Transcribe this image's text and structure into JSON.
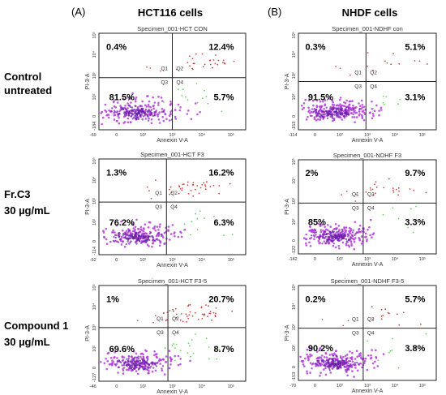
{
  "panel_labels": [
    "(A)",
    "(B)"
  ],
  "column_titles": [
    "HCT116 cells",
    "NHDF cells"
  ],
  "row_labels": [
    [
      "Control",
      "untreated"
    ],
    [
      "Fr.C3",
      "30 µg/mL"
    ],
    [
      "Compound 1",
      "30 µg/mL"
    ]
  ],
  "colors": {
    "q1_dots": "#d9302a",
    "q2_dots": "#c8261e",
    "q4_dots": "#44d23c",
    "q3_dots": "#b53cdc",
    "dense": "#6a1fa8",
    "frame": "#222222"
  },
  "chart_data": [
    {
      "type": "scatter",
      "title": "Specimen_001-HCT CON",
      "xlabel": "Annexin V-A",
      "ylabel": "PI-3-A",
      "x_ticks": [
        "-69",
        "0",
        "10²",
        "10³",
        "10⁴",
        "10⁵"
      ],
      "y_ticks": [
        "-184",
        "0",
        "10²",
        "10³",
        "10⁴",
        "10⁵"
      ],
      "x_scale": "log",
      "y_scale": "log",
      "quadrant_labels": [
        "Q1",
        "Q2",
        "Q3",
        "Q4"
      ],
      "quadrants": {
        "upper_left": 0.4,
        "upper_right": 12.4,
        "lower_left": 81.5,
        "lower_right": 5.7
      },
      "quadrant_text": {
        "upper_left": "0.4%",
        "upper_right": "12.4%",
        "lower_left": "81.5%",
        "lower_right": "5.7%"
      }
    },
    {
      "type": "scatter",
      "title": "Specimen_001-NDHF con",
      "xlabel": "Annexin V-A",
      "ylabel": "PI-3-A",
      "x_ticks": [
        "-114",
        "0",
        "10²",
        "10³",
        "10⁴",
        "10⁵"
      ],
      "y_ticks": [
        "-153",
        "0",
        "10²",
        "10³",
        "10⁴",
        "10⁵"
      ],
      "x_scale": "log",
      "y_scale": "log",
      "quadrant_labels": [
        "Q1",
        "Q2",
        "Q3",
        "Q4"
      ],
      "quadrants": {
        "upper_left": 0.3,
        "upper_right": 5.1,
        "lower_left": 91.5,
        "lower_right": 3.1
      },
      "quadrant_text": {
        "upper_left": "0.3%",
        "upper_right": "5.1%",
        "lower_left": "91.5%",
        "lower_right": "3.1%"
      }
    },
    {
      "type": "scatter",
      "title": "Specimen_001-HCT F3",
      "xlabel": "Annexin V-A",
      "ylabel": "PI-3-A",
      "x_ticks": [
        "-52",
        "0",
        "10²",
        "10³",
        "10⁴",
        "10⁵"
      ],
      "y_ticks": [
        "-114",
        "0",
        "10²",
        "10³",
        "10⁴",
        "10⁵"
      ],
      "x_scale": "log",
      "y_scale": "log",
      "quadrant_labels": [
        "Q1",
        "Q2",
        "Q3",
        "Q4"
      ],
      "quadrants": {
        "upper_left": 1.3,
        "upper_right": 16.2,
        "lower_left": 76.2,
        "lower_right": 6.3
      },
      "quadrant_text": {
        "upper_left": "1.3%",
        "upper_right": "16.2%",
        "lower_left": "76.2%",
        "lower_right": "6.3%"
      }
    },
    {
      "type": "scatter",
      "title": "Specimen_001-NDHF F3",
      "xlabel": "Annexin V-A",
      "ylabel": "PI-3-A",
      "x_ticks": [
        "-142",
        "0",
        "10²",
        "10³",
        "10⁴",
        "10⁵"
      ],
      "y_ticks": [
        "-122",
        "0",
        "10²",
        "10³",
        "10⁴",
        "10⁵"
      ],
      "x_scale": "log",
      "y_scale": "log",
      "quadrant_labels": [
        "Q1",
        "Q2",
        "Q3",
        "Q4"
      ],
      "quadrants": {
        "upper_left": 2,
        "upper_right": 9.7,
        "lower_left": 85,
        "lower_right": 3.3
      },
      "quadrant_text": {
        "upper_left": "2%",
        "upper_right": "9.7%",
        "lower_left": "85%",
        "lower_right": "3.3%"
      }
    },
    {
      "type": "scatter",
      "title": "Specimen_001-HCT F3-5",
      "xlabel": "Annexin V-A",
      "ylabel": "PI-3-A",
      "x_ticks": [
        "-46",
        "0",
        "10²",
        "10³",
        "10⁴",
        "10⁵"
      ],
      "y_ticks": [
        "-127",
        "0",
        "10²",
        "10³",
        "10⁴",
        "10⁵"
      ],
      "x_scale": "log",
      "y_scale": "log",
      "quadrant_labels": [
        "Q1",
        "Q2",
        "Q3",
        "Q4"
      ],
      "quadrants": {
        "upper_left": 1,
        "upper_right": 20.7,
        "lower_left": 69.6,
        "lower_right": 8.7
      },
      "quadrant_text": {
        "upper_left": "1%",
        "upper_right": "20.7%",
        "lower_left": "69.6%",
        "lower_right": "8.7%"
      }
    },
    {
      "type": "scatter",
      "title": "Specimen_001-NDHF F3-5",
      "xlabel": "Annexin V-A",
      "ylabel": "PI-3-A",
      "x_ticks": [
        "-70",
        "0",
        "10²",
        "10³",
        "10⁴",
        "10⁵"
      ],
      "y_ticks": [
        "-153",
        "0",
        "10²",
        "10³",
        "10⁴",
        "10⁵"
      ],
      "x_scale": "log",
      "y_scale": "log",
      "quadrant_labels": [
        "Q1",
        "Q2",
        "Q3",
        "Q4"
      ],
      "quadrants": {
        "upper_left": 0.2,
        "upper_right": 5.7,
        "lower_left": 90.2,
        "lower_right": 3.8
      },
      "quadrant_text": {
        "upper_left": "0.2%",
        "upper_right": "5.7%",
        "lower_left": "90.2%",
        "lower_right": "3.8%"
      }
    }
  ]
}
